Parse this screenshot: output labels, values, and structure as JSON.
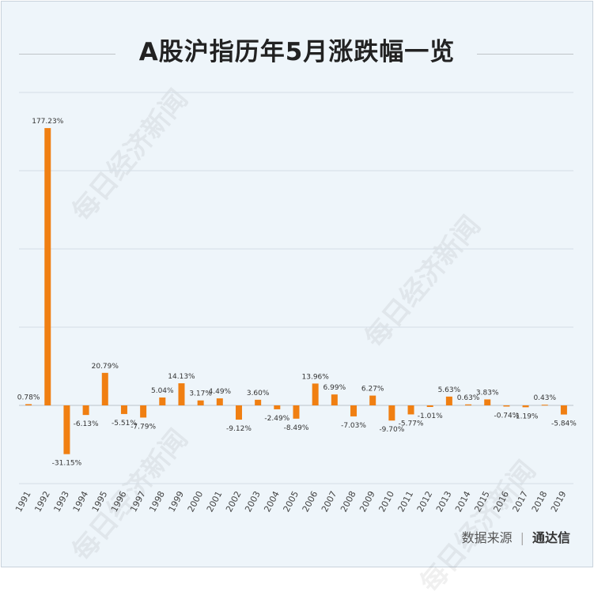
{
  "title": "A股沪指历年5月涨跌幅一览",
  "watermark": "每日经济新闻",
  "source": {
    "label": "数据来源",
    "brand": "通达信"
  },
  "colors": {
    "bar": "#f07f12",
    "grid": "#d4dde5",
    "background": "#eef5fa"
  },
  "chart_data": {
    "type": "bar",
    "title": "A股沪指历年5月涨跌幅一览",
    "categories": [
      "1991",
      "1992",
      "1993",
      "1994",
      "1995",
      "1996",
      "1997",
      "1998",
      "1999",
      "2000",
      "2001",
      "2002",
      "2003",
      "2004",
      "2005",
      "2006",
      "2007",
      "2008",
      "2009",
      "2010",
      "2011",
      "2012",
      "2013",
      "2014",
      "2015",
      "2016",
      "2017",
      "2018",
      "2019"
    ],
    "values": [
      0.78,
      177.23,
      -31.15,
      -6.13,
      20.79,
      -5.51,
      -7.79,
      5.04,
      14.13,
      3.17,
      4.49,
      -9.12,
      3.6,
      -2.49,
      -8.49,
      13.96,
      6.99,
      -7.03,
      6.27,
      -9.7,
      -5.77,
      -1.01,
      5.63,
      0.63,
      3.83,
      -0.74,
      -1.19,
      0.43,
      -5.84
    ],
    "labels": [
      "0.78%",
      "177.23%",
      "-31.15%",
      "-6.13%",
      "20.79%",
      "-5.51%",
      "-7.79%",
      "5.04%",
      "14.13%",
      "3.17%",
      "4.49%",
      "-9.12%",
      "3.60%",
      "-2.49%",
      "-8.49%",
      "13.96%",
      "6.99%",
      "-7.03%",
      "6.27%",
      "-9.70%",
      "-5.77%",
      "-1.01%",
      "5.63%",
      "0.63%",
      "3.83%",
      "-0.74%",
      "-1.19%",
      "0.43%",
      "-5.84%"
    ],
    "unit": "%",
    "ylim": [
      -50,
      200
    ],
    "grid": true,
    "legend": "none",
    "xlabel": "",
    "ylabel": ""
  }
}
